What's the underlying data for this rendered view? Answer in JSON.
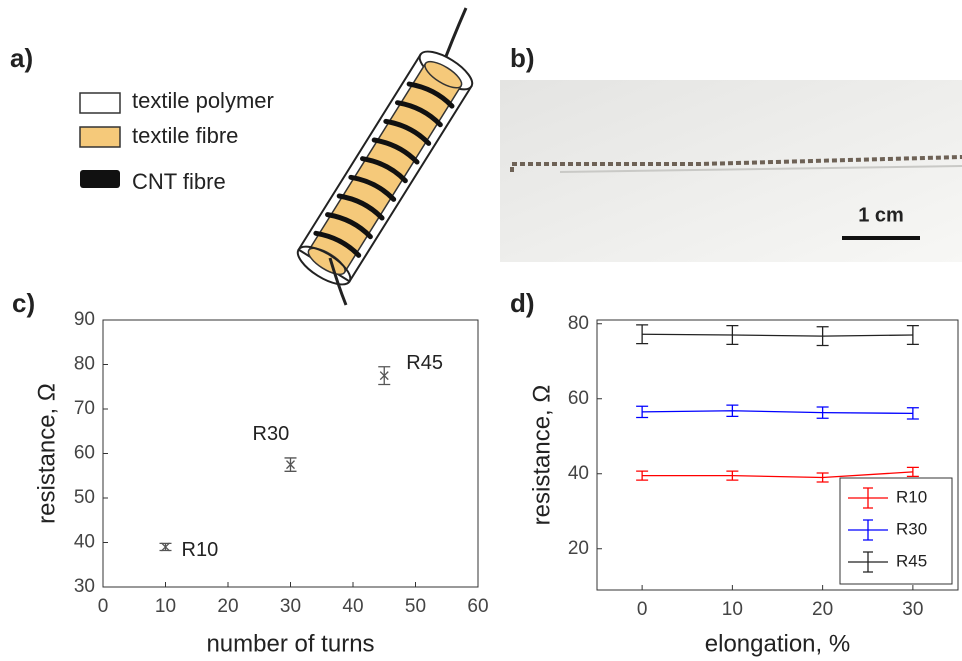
{
  "panels": {
    "a": {
      "label": "a)",
      "legend": [
        "textile polymer",
        "textile fibre",
        "CNT fibre"
      ]
    },
    "b": {
      "label": "b)",
      "scale_bar": "1 cm"
    }
  },
  "chart_data": [
    {
      "type": "scatter",
      "panel_label": "c)",
      "xlabel": "number of turns",
      "ylabel": "resistance, Ω",
      "x": [
        10,
        30,
        45
      ],
      "values": [
        39,
        57.5,
        77.5
      ],
      "errors": [
        0.8,
        1.5,
        2
      ],
      "point_labels": [
        "R10",
        "R30",
        "R45"
      ],
      "color": "#555555",
      "xlim": [
        0,
        60
      ],
      "xticks": [
        0,
        10,
        20,
        30,
        40,
        50,
        60
      ],
      "ylim": [
        30,
        90
      ],
      "yticks": [
        30,
        40,
        50,
        60,
        70,
        80,
        90
      ]
    },
    {
      "type": "line",
      "panel_label": "d)",
      "xlabel": "elongation, %",
      "ylabel": "resistance, Ω",
      "x": [
        0,
        10,
        20,
        30
      ],
      "series": [
        {
          "name": "R10",
          "color": "#ff0000",
          "values": [
            39.5,
            39.5,
            39,
            40.5
          ],
          "errors": [
            1.2,
            1.2,
            1.2,
            1.2
          ]
        },
        {
          "name": "R30",
          "color": "#0000ff",
          "values": [
            56.5,
            56.8,
            56.3,
            56.1
          ],
          "errors": [
            1.5,
            1.5,
            1.5,
            1.5
          ]
        },
        {
          "name": "R45",
          "color": "#222222",
          "values": [
            77.2,
            77,
            76.7,
            77
          ],
          "errors": [
            2.5,
            2.5,
            2.5,
            2.5
          ]
        }
      ],
      "xlim": [
        -5,
        35
      ],
      "xticks": [
        0,
        10,
        20,
        30
      ],
      "ylim": [
        9,
        81
      ],
      "yticks": [
        20,
        40,
        60,
        80
      ],
      "legend": "lower right"
    }
  ]
}
